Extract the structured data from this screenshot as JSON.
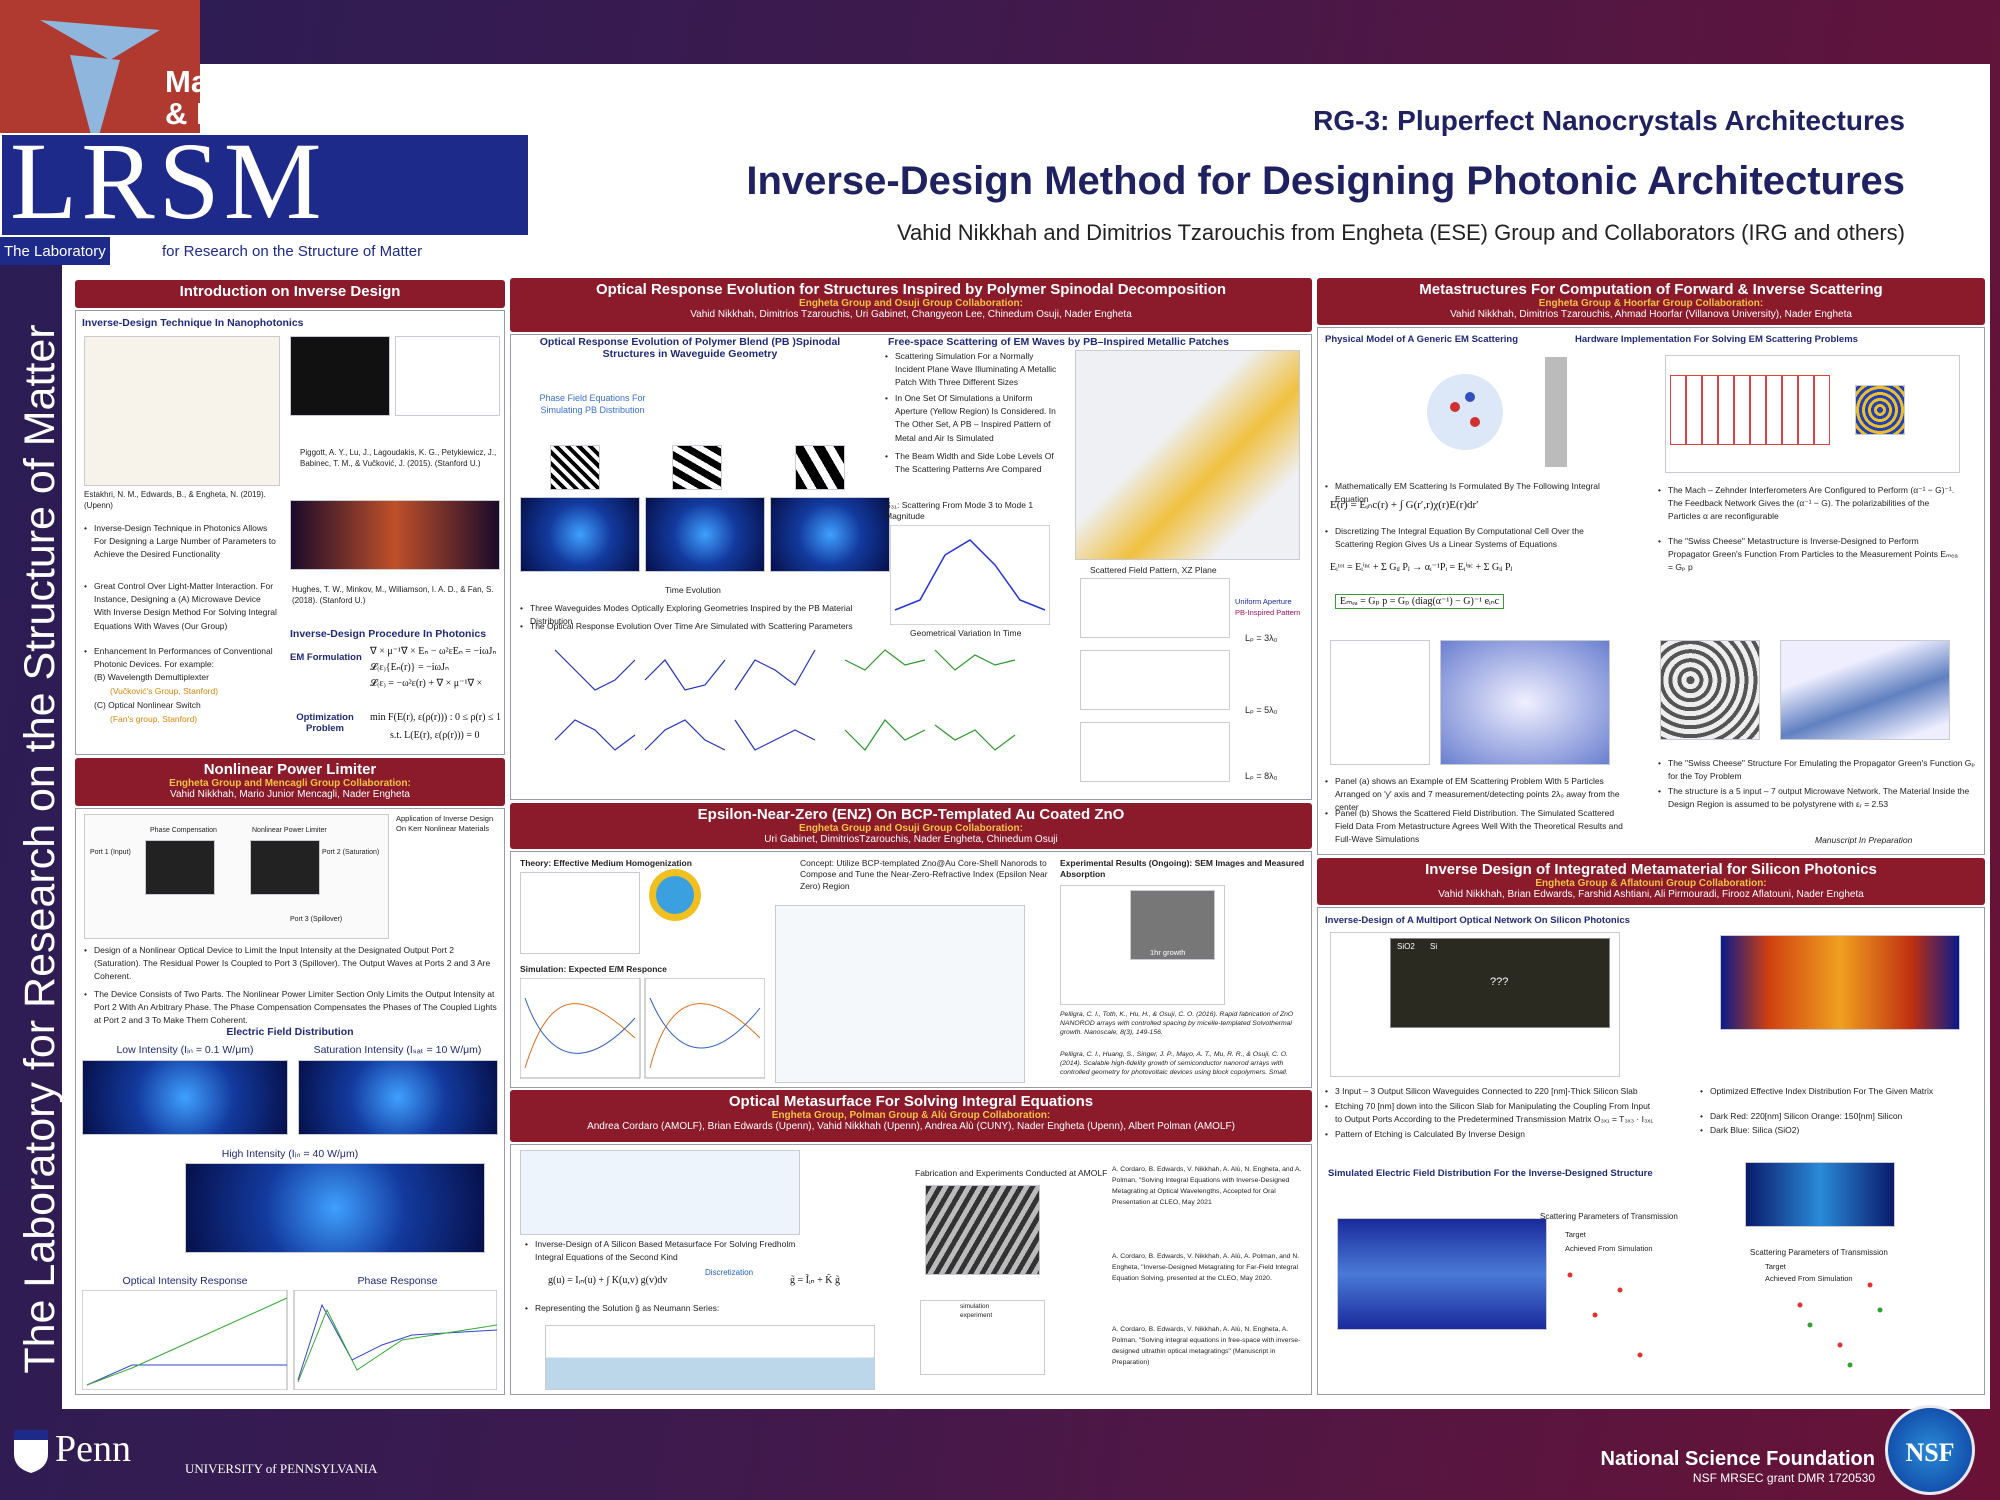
{
  "header": {
    "center_name_1": "Materials Research Science",
    "center_name_2": "& Engineering Center",
    "logo": "LRSM",
    "lab_prefix": "The Laboratory",
    "lab_rest": "for Research on the Structure of Matter",
    "side_text": "The Laboratory for Research on the Structure of Matter",
    "group": "RG-3: Pluperfect Nanocrystals Architectures",
    "title": "Inverse-Design Method for Designing Photonic Architectures",
    "authors": "Vahid Nikkhah and Dimitrios Tzarouchis from Engheta (ESE) Group and Collaborators (IRG and others)"
  },
  "sections": [
    {
      "title": "Introduction on Inverse Design",
      "subheading": "Inverse-Design Technique In Nanophotonics",
      "ref1": "Estakhri, N. M., Edwards, B., & Engheta, N. (2019). (Upenn)",
      "ref2": "Piggott, A. Y., Lu, J., Lagoudakis, K. G., Petykiewicz, J., Babinec, T. M., & Vučković, J. (2015). (Stanford U.)",
      "ref3": "Hughes, T. W., Minkov, M., Williamson, I. A. D., & Fan, S. (2018). (Stanford U.)",
      "bullets": [
        "Inverse-Design Technique in Photonics Allows For Designing a Large Number of Parameters to Achieve the Desired Functionality",
        "Great Control Over Light-Matter Interaction. For Instance, Designing a (A) Microwave Device With Inverse Design Method For Solving Integral Equations With Waves (Our Group)",
        "Enhancement In Performances of Conventional Photonic Devices. For example:"
      ],
      "examples": [
        "(B) Wavelength Demultiplexter",
        "(Vučković's Group, Stanford)",
        "(C) Optical Nonlinear Switch",
        "(Fan's group, Stanford)"
      ],
      "procedure": "Inverse-Design Procedure In Photonics",
      "em_label": "EM Formulation",
      "em_equations": [
        "∇ × μ⁻¹∇ × Eₙ − ω²εEₙ = −iωJₙ",
        "𝓛₍ε₎{Eₙ(r)} = −iωJₙ",
        "𝓛₍ε₎ = −ω²ε(r) + ∇ × μ⁻¹∇ ×"
      ],
      "opt_label": "Optimization Problem",
      "opt_equations": [
        "min F(E(r), ε(ρ(r))) : 0 ≤ ρ(r) ≤ 1",
        "s.t. L(E(r), ε(ρ(r))) = 0"
      ]
    },
    {
      "title": "Nonlinear Power Limiter",
      "collab": "Engheta Group and Mencagli Group Collaboration:",
      "authors": "Vahid Nikkhah, Mario Junior Mencagli, Nader Engheta",
      "note": "Application of Inverse Design On Kerr Nonlinear Materials",
      "bullets": [
        "Design of a Nonlinear Optical Device to Limit the Input Intensity at the Designated Output Port 2 (Saturation). The Residual Power Is Coupled to Port 3 (Spillover). The Output Waves at Ports 2 and 3 Are Coherent.",
        "The Device Consists of Two Parts. The Nonlinear Power Limiter Section Only Limits the Output Intensity at Port 2 With An Arbitrary Phase. The Phase Compensation Compensates the Phases of The Coupled Lights at Port 2 and 3 To Make Them Coherent."
      ],
      "field_heading": "Electric Field Distribution",
      "low": "Low Intensity (Iᵢₙ = 0.1 W/μm)",
      "sat": "Saturation Intensity (Iₛₐₜ = 10 W/μm)",
      "high": "High Intensity (Iᵢₙ = 40 W/μm)",
      "intensity_plot": "Optical Intensity Response",
      "phase_plot": "Phase Response",
      "fig_labels": [
        "Phase Compensation",
        "Nonlinear Power Limiter",
        "Port 1 (Input)",
        "Port 2 (Saturation)",
        "Port 3 (Spillover)"
      ]
    },
    {
      "title": "Optical Response Evolution for Structures Inspired by Polymer Spinodal Decomposition",
      "collab": "Engheta Group and Osuji Group Collaboration:",
      "authors": "Vahid Nikkhah, Dimitrios Tzarouchis, Uri Gabinet, Changyeon Lee, Chinedum Osuji, Nader Engheta",
      "left_heading": "Optical Response Evolution of Polymer Blend (PB )Spinodal Structures in Waveguide Geometry",
      "phase_field": "Phase Field Equations For Simulating PB Distribution",
      "time": "Time Evolution",
      "left_bullets": [
        "Three Waveguides Modes Optically Exploring Geometries Inspired by the PB Material Distribution",
        "The Optical Response Evolution Over Time Are Simulated with Scattering Parameters"
      ],
      "right_heading": "Free-space Scattering of EM Waves by PB–Inspired Metallic Patches",
      "right_bullets": [
        "Scattering Simulation For a Normally Incident Plane Wave Illuminating A Metallic Patch With Three Different Sizes",
        "In One Set Of Simulations a Uniform Aperture (Yellow Region) Is Considered. In The Other Set, A PB – Inspired Pattern of Metal and Air Is Simulated",
        "The Beam Width and Side Lobe Levels Of The Scattering Patterns Are Compared"
      ],
      "s31": "S₃₁: Scattering From Mode 3 to Mode 1 Magnitude",
      "geo": "Geometrical Variation In Time",
      "pattern": "Scattered Field Pattern, XZ Plane",
      "legend": [
        "Uniform Aperture",
        "PB-Inspired Pattern"
      ],
      "lp": [
        "Lₚ = 3λ₀",
        "Lₚ = 5λ₀",
        "Lₚ = 8λ₀"
      ]
    },
    {
      "title": "Epsilon-Near-Zero (ENZ) On BCP-Templated Au Coated ZnO",
      "collab": "Engheta Group and Osuji Group Collaboration:",
      "authors": "Uri Gabinet, DimitriosTzarouchis, Nader Engheta, Chinedum Osuji",
      "theory": "Theory: Effective Medium Homogenization",
      "simulation": "Simulation: Expected E/M Responce",
      "concept": "Concept: Utilize BCP-templated Zno@Au Core-Shell Nanorods to Compose and Tune the Near-Zero-Refractive Index (Epsilon Near Zero) Region",
      "results": "Experimental Results (Ongoing): SEM Images and Measured Absorption",
      "growth": "1hr growth",
      "refs": [
        "Pelligra, C. I., Toth, K., Hu, H., & Osuji, C. O. (2016). Rapid fabrication of ZnO NANOROD arrays with controlled spacing by micelle-templated Solvothermal growth. Nanoscale, 8(3), 149-156.",
        "Pelligra, C. I., Huang, S., Singer, J. P., Mayo, A. T., Mu, R. R., & Osuji, C. O. (2014). Scalable high-fidelity growth of semiconductor nanorod arrays with controlled geometry for photovoltaic devices using block copolymers. Small."
      ]
    },
    {
      "title": "Optical Metasurface For Solving Integral Equations",
      "collab": "Engheta Group, Polman Group & Alù Group Collaboration:",
      "authors": "Andrea Cordaro (AMOLF), Brian Edwards (Upenn), Vahid Nikkhah (Upenn), Andrea Alù (CUNY), Nader Engheta (Upenn), Albert Polman (AMOLF)",
      "bullets": [
        "Inverse-Design of A Silicon Based Metasurface For Solving Fredholm Integral Equations of the Second Kind",
        "Representing the Solution g̃ as Neumann Series:"
      ],
      "equation": "g(u) = Iᵢₙ(u) + ∫ K(u,v) g(v)dv",
      "discretization": "Discretization",
      "equation2": "g̃ = Ĩᵢₙ + K̃ g̃",
      "fab": "Fabrication and Experiments Conducted at AMOLF",
      "legend": [
        "simulation",
        "experiment"
      ],
      "refs": [
        "A. Cordaro, B. Edwards, V. Nikkhah, A. Alù, N. Engheta, and A. Polman, \"Solving Integral Equations with Inverse-Designed Metagrating at Optical Wavelengths, Accepted for Oral Presentation at CLEO, May 2021",
        "A. Cordaro, B. Edwards, V. Nikkhah, A. Alù, A. Polman, and N. Engheta, \"Inverse-Designed Metagrating for Far-Field Integral Equation Solving, presented at the CLEO, May 2020.",
        "A. Cordaro, B. Edwards, V. Nikkhah, A. Alù, N. Engheta, A. Polman, \"Solving integral equations in free-space with inverse-designed ultrathin optical metagratings\" (Manuscript in Preparation)"
      ]
    },
    {
      "title": "Metastructures For Computation of Forward & Inverse Scattering",
      "collab": "Engheta Group & Hoorfar Group Collaboration:",
      "authors": "Vahid Nikkhah, Dimitrios Tzarouchis, Ahmad Hoorfar (Villanova University), Nader Engheta",
      "left_heading": "Physical Model of A Generic EM Scattering",
      "right_heading": "Hardware Implementation For Solving EM Scattering Problems",
      "left_bullets": [
        "Mathematically EM Scattering Is Formulated By The Following Integral Equation",
        "Discretizing The Integral Equation By Computational Cell Over the Scattering Region Gives Us a Linear Systems of Equations",
        "Panel (a) shows an Example of EM Scattering Problem With 5 Particles Arranged on 'y' axis and 7 measurement/detecting points 2λ₀ away from the center",
        "Panel (b) Shows the Scattered Field Distribution. The Simulated Scattered Field Data From Metastructure Agrees Well With the Theoretical Results and Full-Wave Simulations"
      ],
      "equations": [
        "E(r) = Eᵢₙc(r) + ∫ G(r′,r)χ(r)E(r)dr′",
        "Eᵢᵗᵒᵗ = Eᵢⁱⁿᶜ + Σ Gᵢⱼ Pⱼ → αᵢ⁻¹Pᵢ = Eᵢⁱⁿᶜ + Σ Gᵢⱼ Pⱼ",
        "Eₘₑₐ = Gₚ p = Gₚ (diag(α⁻¹) − G)⁻¹ eᵢₙc"
      ],
      "right_bullets": [
        "The Mach – Zehnder Interferometers Are Configured to Perform (α⁻¹ − G)⁻¹. The Feedback Network Gives the (α⁻¹ − G). The polarizabilities of the Particles α are reconfigurable",
        "The \"Swiss Cheese\" Metastructure is Inverse-Designed to Perform Propagator Green's Function From Particles to the Measurement Points Eₘₑₐ = Gₚ p",
        "The \"Swiss Cheese\" Structure For Emulating the Propagator Green's Function Gₚ for the Toy Problem",
        "The structure is a 5 input – 7 output Microwave Network. The Material Inside the Design Region is assumed to be polystyrene with εᵣ = 2.53"
      ],
      "manuscript": "Manuscript In Preparation"
    },
    {
      "title": "Inverse Design of Integrated Metamaterial for Silicon Photonics",
      "collab": "Engheta Group & Aflatouni Group Collaboration:",
      "authors": "Vahid Nikkhah, Brian Edwards, Farshid Ashtiani, Ali Pirmouradi, Firooz Aflatouni, Nader Engheta",
      "heading": "Inverse-Design of A Multiport Optical Network On Silicon Photonics",
      "left_bullets": [
        "3 Input – 3 Output Silicon Waveguides Connected to 220 [nm]-Thick Silicon Slab",
        "Etching 70 [nm] down into the Silicon Slab for Manipulating the Coupling From Input to Output Ports According to the Predetermined Transmission Matrix O₃ₓ₁ = T₃ₓ₃ · I₃ₓ₁",
        "Pattern of Etching is Calculated By Inverse Design"
      ],
      "right_bullets": [
        "Optimized Effective Index Distribution For The Given Matrix",
        "Dark Red: 220[nm] Silicon  Orange: 150[nm] Silicon",
        "Dark Blue: Silica (SiO2)"
      ],
      "fig_labels": [
        "SiO2",
        "Si",
        "???"
      ],
      "field_heading": "Simulated Electric Field Distribution For the Inverse-Designed Structure",
      "sparams": "Scattering Parameters of Transmission",
      "legend": [
        "Target",
        "Achieved From Simulation"
      ]
    }
  ],
  "footer": {
    "penn": "Penn",
    "university": "UNIVERSITY of PENNSYLVANIA",
    "nsf_name": "National Science Foundation",
    "grant": "NSF MRSEC grant DMR 1720530",
    "nsf_logo": "NSF"
  }
}
